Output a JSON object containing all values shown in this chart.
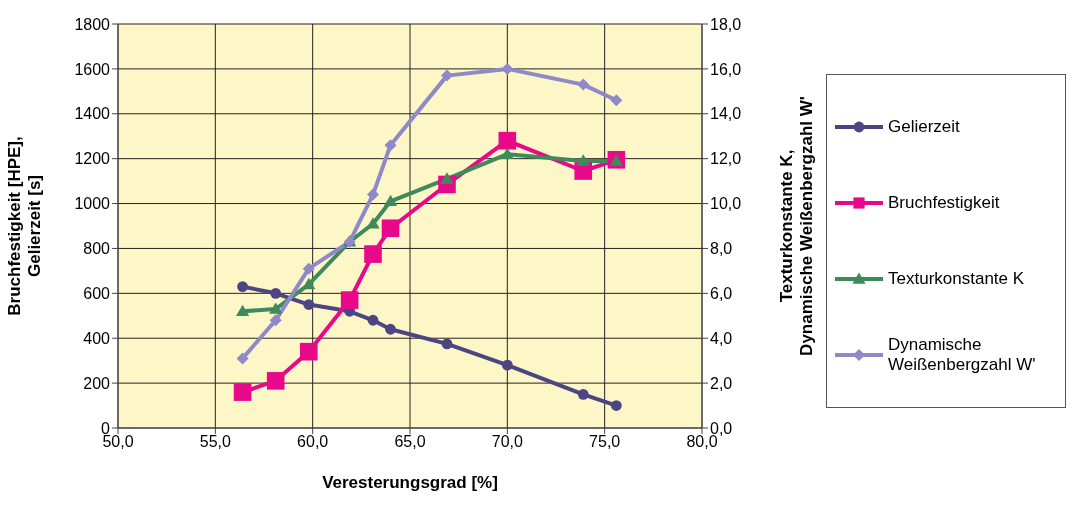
{
  "chart_data": {
    "type": "line",
    "xlabel": "Veresterungsgrad [%]",
    "ylabel": "Bruchfestigkeit [HPE],\nGelierzeit [s]",
    "y2label": "Texturkonstante K,\nDynamische Weißenbergzahl W'",
    "x": [
      56.4,
      58.1,
      59.8,
      61.9,
      63.1,
      64.0,
      66.9,
      70.0,
      73.9,
      75.6
    ],
    "series": [
      {
        "name": "Gelierzeit",
        "color": "#4b4682",
        "marker": "circle",
        "values": [
          630,
          600,
          550,
          520,
          480,
          440,
          375,
          280,
          150,
          100
        ]
      },
      {
        "name": "Bruchfestigkeit",
        "color": "#e8088a",
        "marker": "square",
        "values": [
          160,
          210,
          340,
          570,
          775,
          890,
          1085,
          1280,
          1145,
          1195
        ]
      },
      {
        "name": "Texturkonstante K",
        "color": "#3f8a5a",
        "marker": "triangle",
        "axis": "y2",
        "values": [
          5.2,
          5.3,
          6.4,
          8.3,
          9.1,
          10.1,
          11.1,
          12.2,
          11.9,
          11.9
        ]
      },
      {
        "name": "Dynamische Weißenbergzahl W'",
        "color": "#8f89c9",
        "marker": "diamond",
        "axis": "y2",
        "values": [
          3.1,
          4.8,
          7.1,
          8.3,
          10.4,
          12.6,
          15.7,
          16.0,
          15.3,
          14.6
        ]
      }
    ],
    "xlim": [
      50,
      80
    ],
    "xticks": [
      {
        "value": 50,
        "label": "50,0"
      },
      {
        "value": 55,
        "label": "55,0"
      },
      {
        "value": 60,
        "label": "60,0"
      },
      {
        "value": 65,
        "label": "65,0"
      },
      {
        "value": 70,
        "label": "70,0"
      },
      {
        "value": 75,
        "label": "75,0"
      },
      {
        "value": 80,
        "label": "80,0"
      }
    ],
    "ylim": [
      0,
      1800
    ],
    "yticks": [
      0,
      200,
      400,
      600,
      800,
      1000,
      1200,
      1400,
      1600,
      1800
    ],
    "y2lim": [
      0,
      18
    ],
    "y2ticks": [
      {
        "value": 0,
        "label": "0,0"
      },
      {
        "value": 2,
        "label": "2,0"
      },
      {
        "value": 4,
        "label": "4,0"
      },
      {
        "value": 6,
        "label": "6,0"
      },
      {
        "value": 8,
        "label": "8,0"
      },
      {
        "value": 10,
        "label": "10,0"
      },
      {
        "value": 12,
        "label": "12,0"
      },
      {
        "value": 14,
        "label": "14,0"
      },
      {
        "value": 16,
        "label": "16,0"
      },
      {
        "value": 18,
        "label": "18,0"
      }
    ],
    "grid": true,
    "legend": "right",
    "line_style": "solid"
  }
}
